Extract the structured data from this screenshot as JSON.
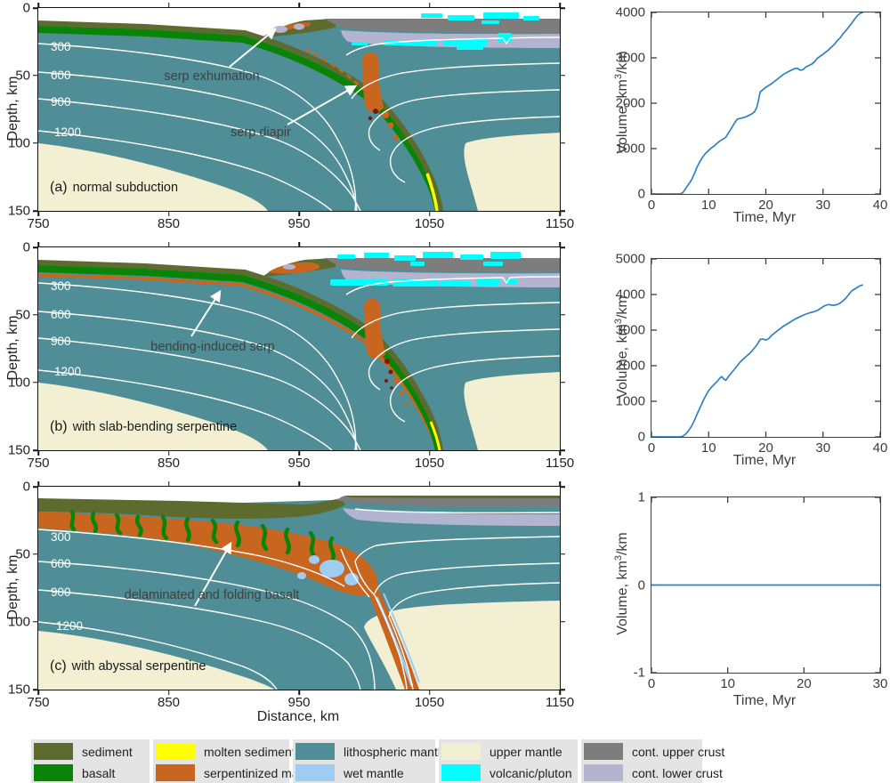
{
  "panels": [
    {
      "id": "a",
      "caption_prefix": "(a)",
      "caption": "normal subduction",
      "ylabel": "Depth, km",
      "xticks": [
        "750",
        "850",
        "950",
        "1050",
        "1150"
      ],
      "yticks": [
        "0",
        "50",
        "100",
        "150"
      ],
      "annotations": [
        {
          "text": "serp exhumation"
        },
        {
          "text": "serp diapir"
        }
      ]
    },
    {
      "id": "b",
      "caption_prefix": "(b)",
      "caption": "with slab-bending serpentine",
      "ylabel": "Depth, km",
      "xticks": [
        "750",
        "850",
        "950",
        "1050",
        "1150"
      ],
      "yticks": [
        "0",
        "50",
        "100",
        "150"
      ],
      "annotations": [
        {
          "text": "bending-induced serp"
        }
      ]
    },
    {
      "id": "c",
      "caption_prefix": "(c)",
      "caption": "with abyssal serpentine",
      "ylabel": "Depth, km",
      "xlabel": "Distance, km",
      "xticks": [
        "750",
        "850",
        "950",
        "1050",
        "1150"
      ],
      "yticks": [
        "0",
        "50",
        "100",
        "150"
      ],
      "annotations": [
        {
          "text": "delaminated and folding basalt"
        }
      ]
    }
  ],
  "contour_labels": [
    "300",
    "600",
    "900",
    "1200"
  ],
  "chart_data": [
    {
      "type": "line",
      "xlabel": "Time, Myr",
      "ylabel_pre": "Volume, km",
      "ylabel_sup": "3",
      "ylabel_post": "/km",
      "xlim": [
        0,
        40
      ],
      "ylim": [
        0,
        4000
      ],
      "xticks": [
        0,
        10,
        20,
        30,
        40
      ],
      "yticks": [
        0,
        1000,
        2000,
        3000,
        4000
      ],
      "line_color": "#2e82c4",
      "x": [
        0,
        5,
        5.5,
        6,
        6.5,
        7,
        7.5,
        8,
        8.5,
        9,
        9.5,
        10,
        10.5,
        11,
        11.5,
        12,
        12.5,
        13,
        13.5,
        14,
        14.5,
        15,
        15.5,
        16,
        16.5,
        17,
        17.5,
        18,
        18.4,
        18.7,
        19,
        19.5,
        20,
        21,
        22,
        23,
        24,
        25,
        25.5,
        26,
        26.5,
        27,
        28,
        28.5,
        29,
        30,
        31,
        32,
        32.5,
        33,
        33.5,
        34,
        34.5,
        35,
        35.5,
        36,
        36.5,
        37
      ],
      "y": [
        0,
        0,
        30,
        120,
        220,
        310,
        450,
        600,
        720,
        820,
        900,
        960,
        1020,
        1060,
        1120,
        1170,
        1210,
        1250,
        1350,
        1450,
        1560,
        1650,
        1665,
        1680,
        1700,
        1730,
        1760,
        1810,
        1900,
        2050,
        2250,
        2300,
        2350,
        2430,
        2530,
        2630,
        2700,
        2760,
        2770,
        2730,
        2740,
        2800,
        2860,
        2910,
        2990,
        3080,
        3180,
        3300,
        3380,
        3440,
        3530,
        3600,
        3680,
        3760,
        3850,
        3930,
        3980,
        4000
      ]
    },
    {
      "type": "line",
      "xlabel": "Time, Myr",
      "ylabel_pre": "Volume, km",
      "ylabel_sup": "3",
      "ylabel_post": "/km",
      "xlim": [
        0,
        40
      ],
      "ylim": [
        0,
        5000
      ],
      "xticks": [
        0,
        10,
        20,
        30,
        40
      ],
      "yticks": [
        0,
        1000,
        2000,
        3000,
        4000,
        5000
      ],
      "line_color": "#2e82c4",
      "x": [
        0,
        5,
        5.5,
        6,
        6.5,
        7,
        7.5,
        8,
        8.5,
        9,
        9.5,
        10,
        10.5,
        11,
        11.5,
        12,
        12.3,
        12.7,
        13,
        13.5,
        14,
        14.5,
        15,
        15.5,
        16,
        16.5,
        17,
        17.5,
        18,
        18.5,
        19,
        19.5,
        20,
        20.5,
        21,
        22,
        23,
        24,
        25,
        26,
        27,
        28,
        28.5,
        29,
        29.5,
        30,
        30.5,
        31,
        31.5,
        32,
        32.5,
        33,
        33.5,
        34,
        34.5,
        35,
        35.5,
        36,
        36.5,
        37
      ],
      "y": [
        0,
        0,
        20,
        80,
        180,
        300,
        460,
        650,
        820,
        1000,
        1160,
        1300,
        1400,
        1480,
        1560,
        1660,
        1690,
        1620,
        1590,
        1700,
        1800,
        1900,
        2000,
        2100,
        2180,
        2250,
        2320,
        2400,
        2500,
        2600,
        2740,
        2750,
        2720,
        2760,
        2850,
        2980,
        3100,
        3200,
        3300,
        3380,
        3450,
        3500,
        3520,
        3550,
        3600,
        3660,
        3700,
        3720,
        3700,
        3700,
        3720,
        3760,
        3820,
        3900,
        4000,
        4100,
        4150,
        4200,
        4250,
        4270
      ]
    },
    {
      "type": "line",
      "xlabel": "Time, Myr",
      "ylabel_pre": "Volume, km",
      "ylabel_sup": "3",
      "ylabel_post": "/km",
      "xlim": [
        0,
        30
      ],
      "ylim": [
        -1,
        1
      ],
      "xticks": [
        0,
        10,
        20,
        30
      ],
      "yticks": [
        -1,
        0,
        1
      ],
      "line_color": "#2e82c4",
      "x": [
        0,
        30
      ],
      "y": [
        0,
        0
      ]
    }
  ],
  "legend": {
    "items": [
      {
        "label": "sediment",
        "color": "#5d6b2f"
      },
      {
        "label": "basalt",
        "color": "#0a8406"
      },
      {
        "label": "molten sediment",
        "color": "#ffff00"
      },
      {
        "label": "serpentinized mantle",
        "color": "#c8661f"
      },
      {
        "label": "lithospheric mantle",
        "color": "#4f8e96"
      },
      {
        "label": "wet mantle",
        "color": "#9fccf2"
      },
      {
        "label": "upper mantle",
        "color": "#f2efd2"
      },
      {
        "label": "volcanic/pluton",
        "color": "#00ffff"
      },
      {
        "label": "cont. upper crust",
        "color": "#7d7d7d"
      },
      {
        "label": "cont. lower crust",
        "color": "#b2b4d0"
      }
    ]
  },
  "colors": {
    "lithospheric_mantle": "#4f8e96",
    "upper_mantle": "#f2efd2",
    "sediment": "#5d6b2f",
    "basalt": "#0a8406",
    "molten_sediment": "#ffff00",
    "serpentinized_mantle": "#c8661f",
    "wet_mantle": "#9fccf2",
    "volcanic_pluton": "#00ffff",
    "cont_upper_crust": "#7d7d7d",
    "cont_lower_crust": "#b2b4d0",
    "isotherm_contour": "#ffffff",
    "chart_line": "#2e82c4"
  }
}
